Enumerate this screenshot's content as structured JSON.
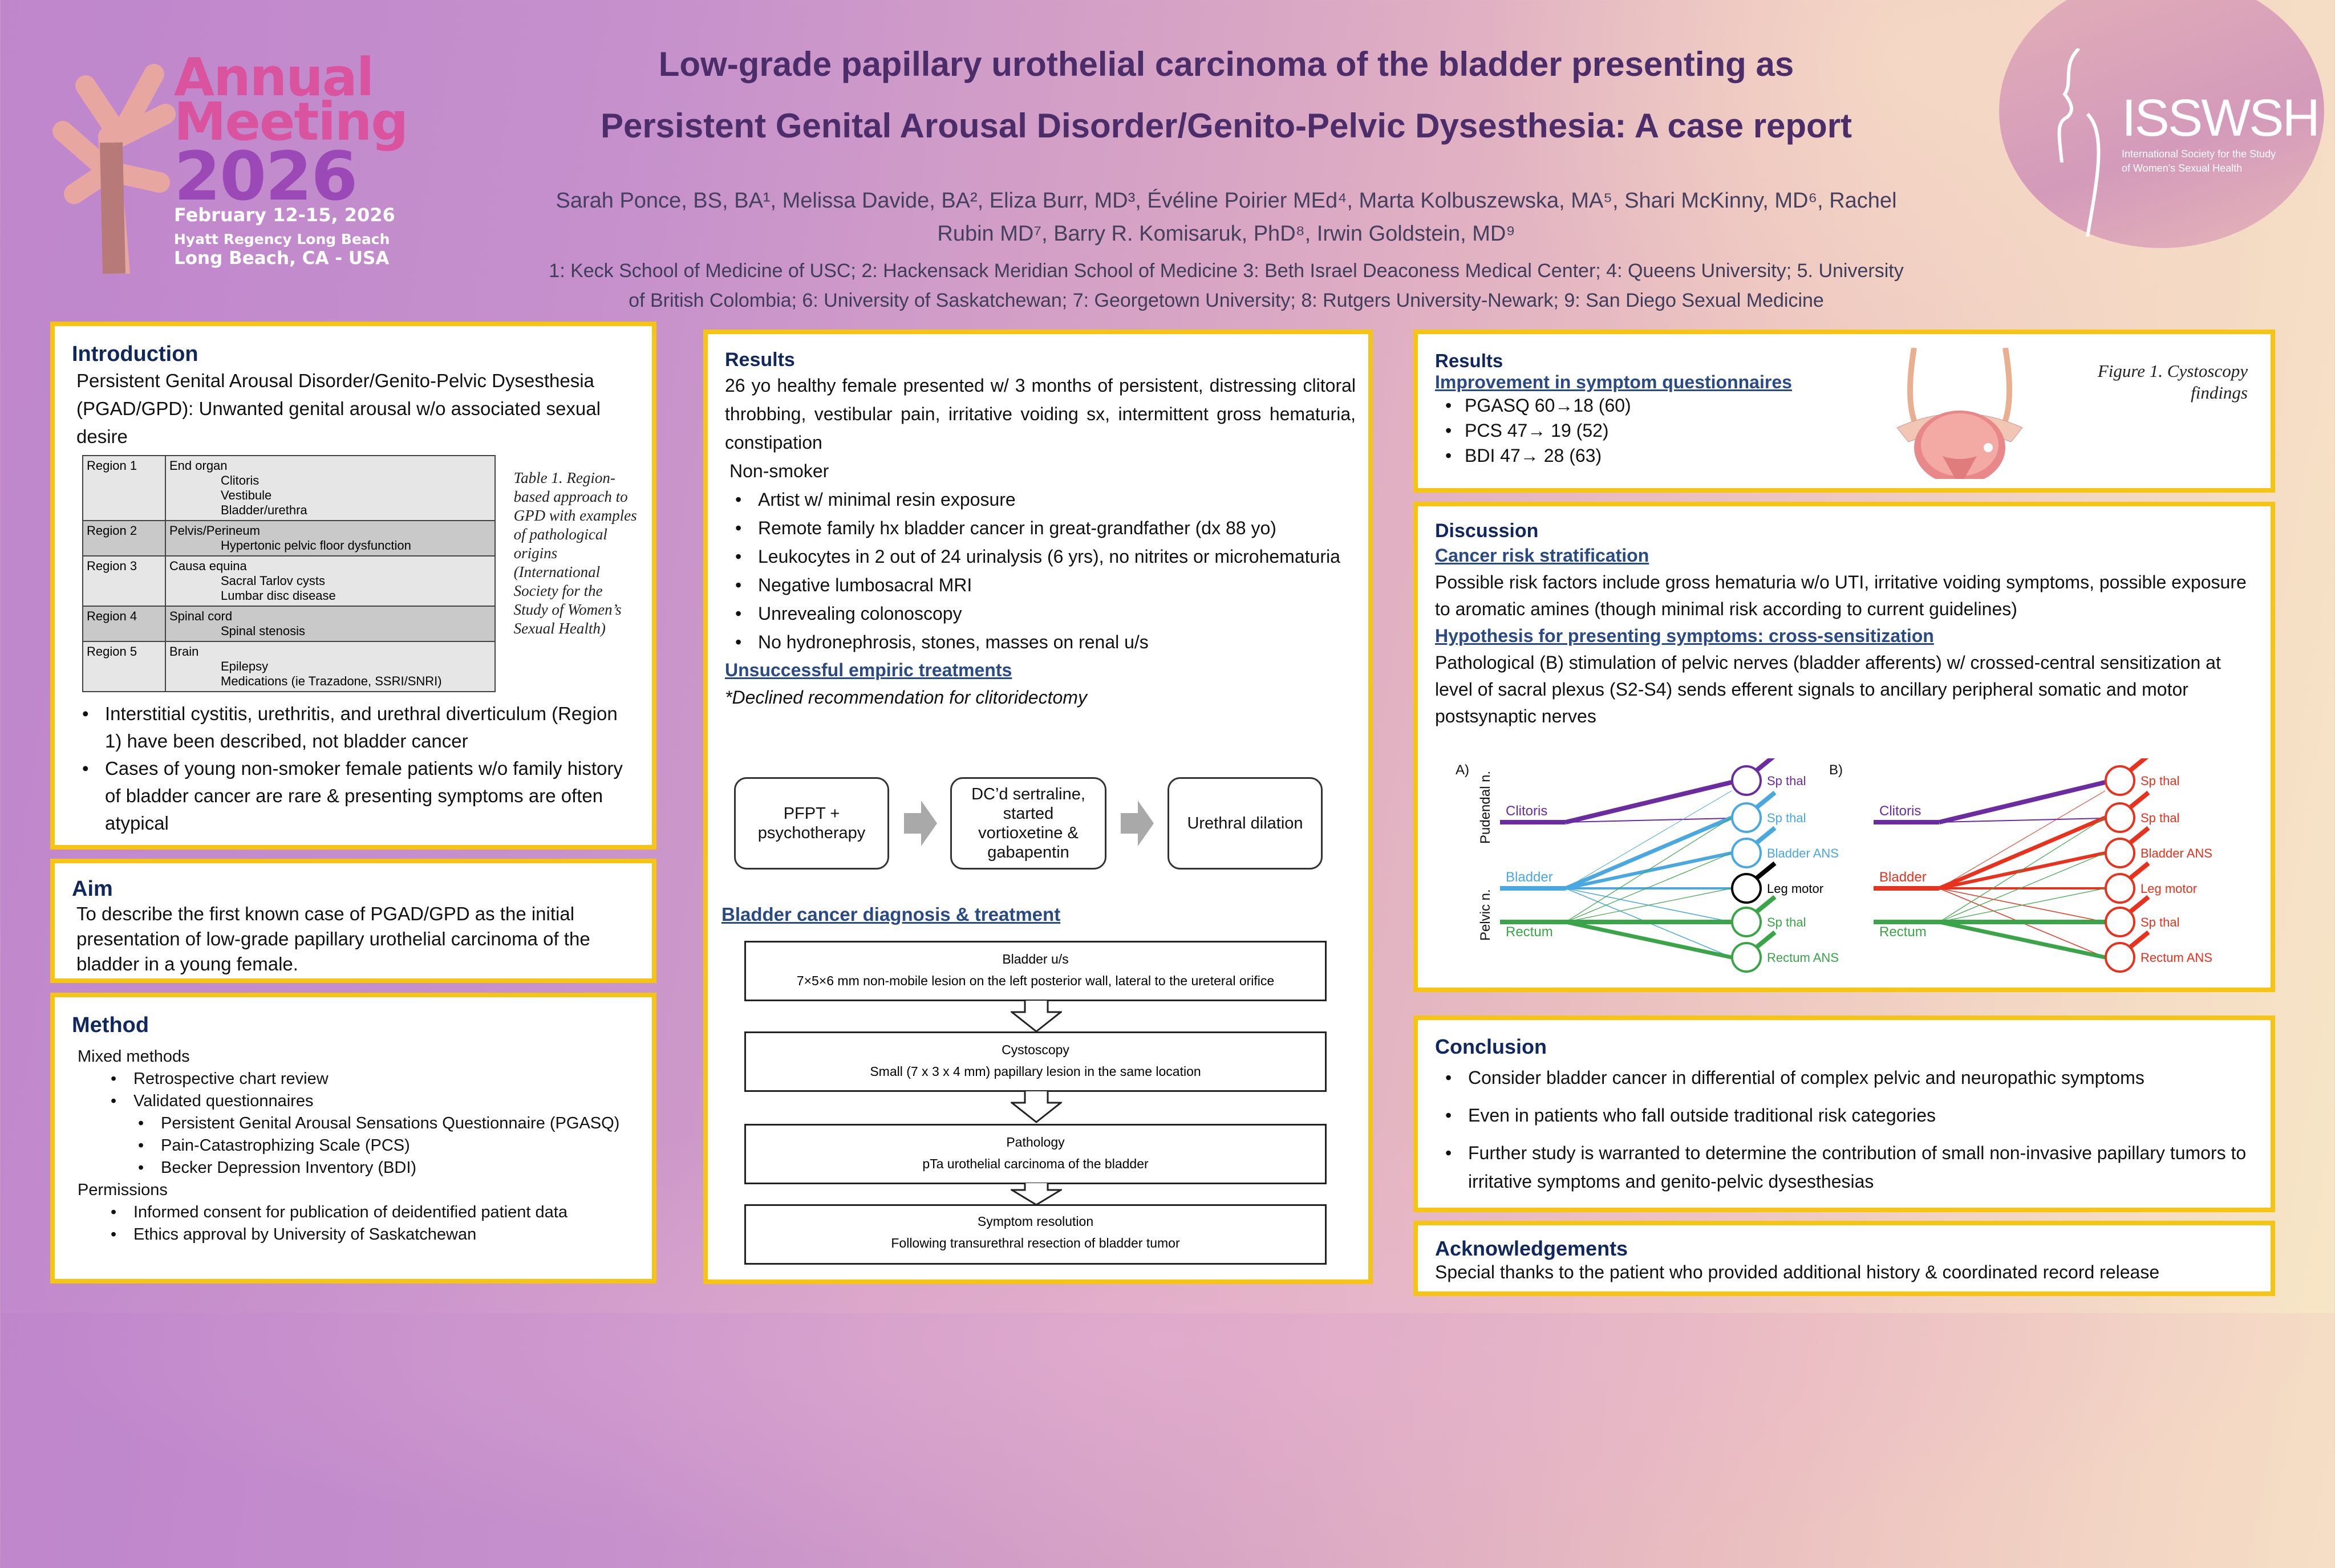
{
  "header": {
    "title_line1": "Low-grade papillary urothelial carcinoma of the bladder presenting as",
    "title_line2": "Persistent Genital Arousal Disorder/Genito-Pelvic Dysesthesia: A case report",
    "authors_line1": "Sarah Ponce, BS, BA¹, Melissa Davide, BA², Eliza Burr, MD³, Évéline Poirier MEd⁴, Marta Kolbuszewska, MA⁵, Shari McKinny, MD⁶, Rachel",
    "authors_line2": "Rubin MD⁷, Barry R. Komisaruk, PhD⁸, Irwin Goldstein, MD⁹",
    "affiliations_line1": "1: Keck School of Medicine of USC; 2: Hackensack Meridian School of Medicine 3: Beth Israel Deaconess Medical Center; 4: Queens University; 5. University",
    "affiliations_line2": "of British Colombia; 6: University of Saskatchewan; 7: Georgetown University; 8: Rutgers University-Newark; 9: San Diego Sexual Medicine"
  },
  "meeting_logo": {
    "line1": "Annual",
    "line2": "Meeting",
    "year": "2026",
    "dates": "February 12-15, 2026",
    "venue": "Hyatt Regency Long Beach",
    "city": "Long Beach, CA - USA"
  },
  "society_logo": {
    "acronym": "ISSWSH",
    "name_line1": "International Society for the Study",
    "name_line2": "of Women's Sexual Health"
  },
  "colors": {
    "border": "#f6c412",
    "heading": "#10285e",
    "link": "#2a4a86",
    "purple": "#6a2c9e",
    "blue": "#4aa8e0",
    "green": "#3aa548",
    "red": "#e8321e"
  },
  "introduction": {
    "heading": "Introduction",
    "text": "Persistent Genital Arousal Disorder/Genito-Pelvic Dysesthesia (PGAD/GPD): Unwanted genital arousal w/o associated sexual desire",
    "table": [
      {
        "region": "Region 1",
        "origin": "End organ",
        "examples": [
          "Clitoris",
          "Vestibule",
          "Bladder/urethra"
        ]
      },
      {
        "region": "Region 2",
        "origin": "Pelvis/Perineum",
        "examples": [
          "Hypertonic pelvic floor dysfunction"
        ]
      },
      {
        "region": "Region 3",
        "origin": "Causa equina",
        "examples": [
          "Sacral Tarlov cysts",
          "Lumbar disc disease"
        ]
      },
      {
        "region": "Region 4",
        "origin": "Spinal cord",
        "examples": [
          "Spinal stenosis"
        ]
      },
      {
        "region": "Region 5",
        "origin": "Brain",
        "examples": [
          "Epilepsy",
          "Medications (ie Trazadone, SSRI/SNRI)"
        ]
      }
    ],
    "table_caption": "Table 1. Region-based approach to GPD with examples of pathological origins (International Society for the Study of Women’s Sexual Health)",
    "bullets": [
      "Interstitial cystitis, urethritis, and urethral diverticulum (Region 1) have been described, not bladder cancer",
      "Cases of young non-smoker female patients w/o family history of bladder cancer are rare & presenting symptoms are often atypical"
    ]
  },
  "aim": {
    "heading": "Aim",
    "text": "To describe the first known case of PGAD/GPD as the initial presentation of low-grade papillary urothelial carcinoma of the bladder in a young female."
  },
  "method": {
    "heading": "Method",
    "mixed": "Mixed methods",
    "mixed_items": [
      "Retrospective chart review",
      "Validated questionnaires"
    ],
    "questionnaires": [
      "Persistent Genital Arousal Sensations Questionnaire (PGASQ)",
      "Pain-Catastrophizing Scale (PCS)",
      "Becker Depression Inventory (BDI)"
    ],
    "permissions": "Permissions",
    "permission_items": [
      "Informed consent for publication of deidentified patient data",
      "Ethics approval by University of Saskatchewan"
    ]
  },
  "results_case": {
    "heading": "Results",
    "presentation": "26 yo healthy female presented w/ 3 months of persistent, distressing clitoral throbbing, vestibular pain, irritative voiding sx, intermittent gross hematuria, constipation",
    "nonsmoker": "Non-smoker",
    "bullets": [
      "Artist w/ minimal resin exposure",
      "Remote family hx bladder cancer in great-grandfather (dx 88 yo)",
      "Leukocytes in 2 out of 24 urinalysis (6 yrs), no nitrites or microhematuria",
      "Negative lumbosacral MRI",
      "Unrevealing colonoscopy",
      "No hydronephrosis, stones, masses on renal u/s"
    ],
    "treatments_heading": "Unsuccessful empiric treatments",
    "declined": "*Declined recommendation for clitoridectomy",
    "treatments": [
      "PFPT + psychotherapy",
      "DC’d sertraline, started vortioxetine & gabapentin",
      "Urethral dilation"
    ],
    "diagnosis_heading": "Bladder cancer diagnosis & treatment",
    "steps": [
      {
        "title": "Bladder u/s",
        "detail": "7×5×6 mm non-mobile lesion on the left posterior wall, lateral to the ureteral orifice"
      },
      {
        "title": "Cystoscopy",
        "detail": "Small (7 x 3 x 4 mm) papillary lesion in the same location"
      },
      {
        "title": "Pathology",
        "detail": "pTa urothelial carcinoma of the bladder"
      },
      {
        "title": "Symptom resolution",
        "detail": "Following transurethral resection of bladder tumor"
      }
    ]
  },
  "results_scores": {
    "heading": "Results",
    "subheading": "Improvement in symptom questionnaires",
    "bullets": [
      "PGASQ 60→18 (60)",
      "PCS 47→ 19 (52)",
      "BDI 47→ 28 (63)"
    ],
    "figure_caption": "Figure 1. Cystoscopy findings"
  },
  "discussion": {
    "heading": "Discussion",
    "sub1": "Cancer risk stratification",
    "text1": "Possible risk factors include gross hematuria w/o UTI, irritative voiding symptoms, possible exposure to aromatic amines (though minimal risk according to current guidelines)",
    "sub2": "Hypothesis for presenting symptoms: cross-sensitization",
    "text2": "Pathological (B) stimulation of pelvic nerves (bladder afferents) w/ crossed-central sensitization at level of sacral plexus (S2-S4) sends efferent signals to ancillary peripheral somatic and motor postsynaptic nerves",
    "diagram": {
      "panel_a": "A)",
      "panel_b": "B)",
      "nerve_pudendal": "Pudendal n.",
      "nerve_pelvic": "Pelvic n.",
      "inputs": [
        "Clitoris",
        "Bladder",
        "Rectum"
      ],
      "targets": [
        "Sp thal",
        "Sp thal",
        "Bladder ANS",
        "Leg motor",
        "Sp thal",
        "Rectum ANS"
      ]
    }
  },
  "conclusion": {
    "heading": "Conclusion",
    "bullets": [
      "Consider bladder cancer in differential of complex pelvic and neuropathic symptoms",
      "Even in patients who fall outside traditional risk categories",
      "Further study is warranted to determine the contribution of small non-invasive papillary tumors to irritative symptoms and genito-pelvic dysesthesias"
    ]
  },
  "acknowledgements": {
    "heading": "Acknowledgements",
    "text": "Special thanks to the patient who provided additional history & coordinated record release"
  }
}
